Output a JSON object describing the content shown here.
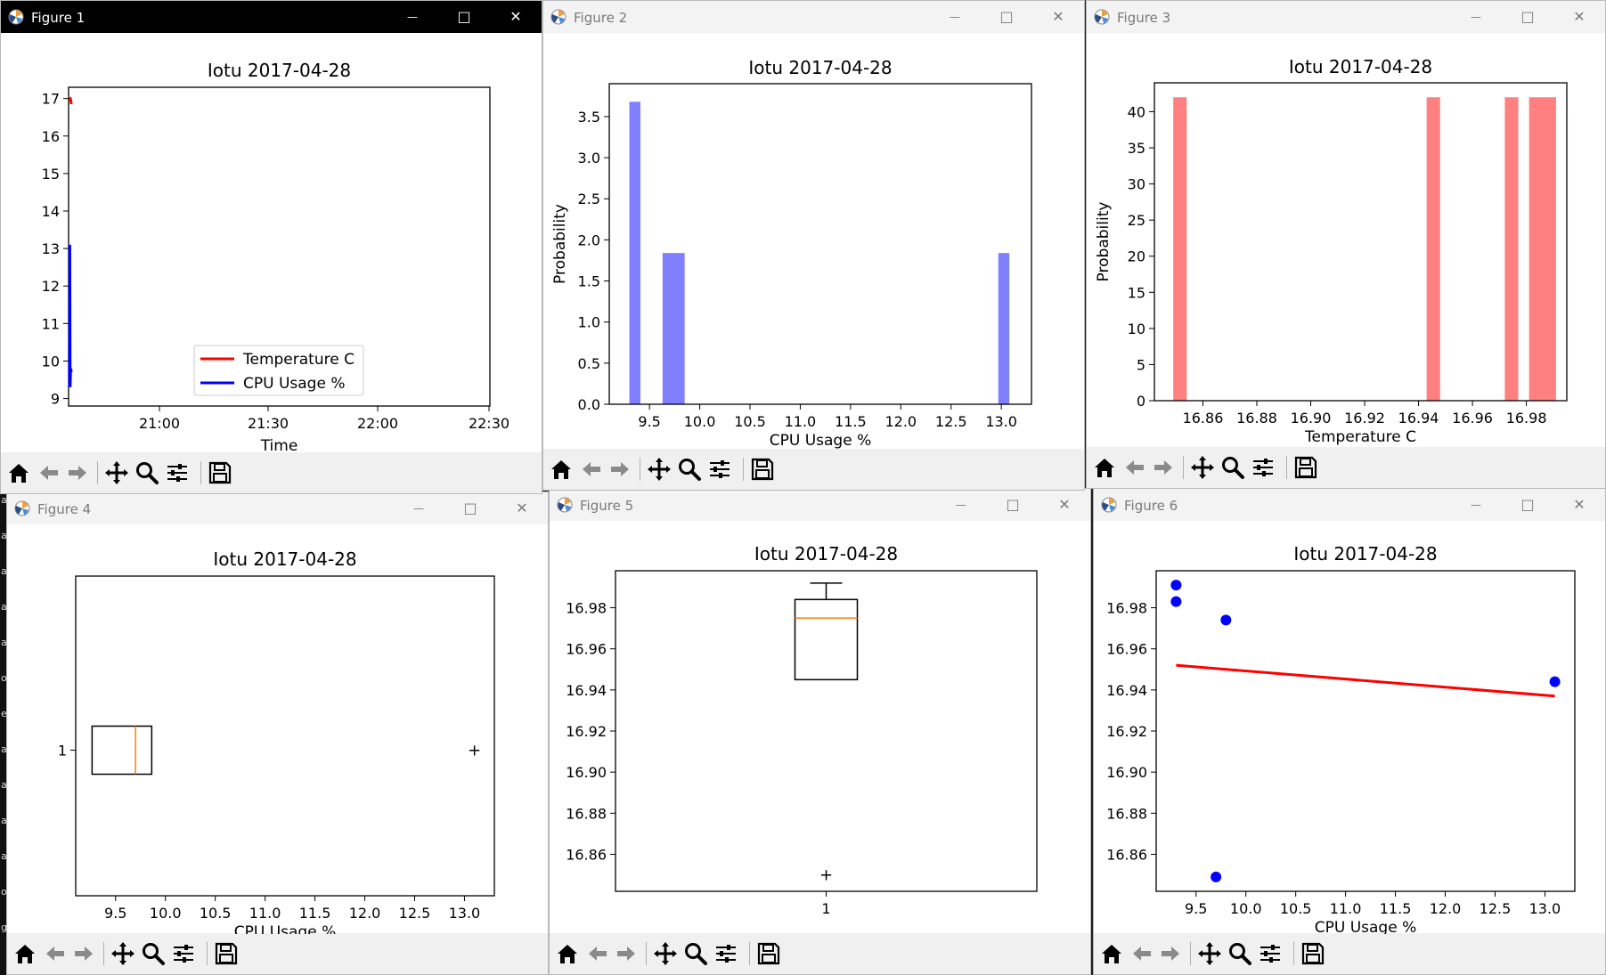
{
  "windows": [
    {
      "id": 1,
      "title": "Figure 1",
      "active": true
    },
    {
      "id": 2,
      "title": "Figure 2",
      "active": false
    },
    {
      "id": 3,
      "title": "Figure 3",
      "active": false
    },
    {
      "id": 4,
      "title": "Figure 4",
      "active": false
    },
    {
      "id": 5,
      "title": "Figure 5",
      "active": false
    },
    {
      "id": 6,
      "title": "Figure 6",
      "active": false
    }
  ],
  "toolbar_icons": [
    "home-icon",
    "back-arrow-icon",
    "forward-arrow-icon",
    "pan-icon",
    "zoom-icon",
    "configure-subplots-icon",
    "save-icon"
  ],
  "colors": {
    "blue": "#0000ff",
    "red": "#ff0000",
    "hist_blue": "#8080ff",
    "hist_red": "#ff8080",
    "median": "#ff7f0e"
  },
  "chart_data": [
    {
      "figure": 1,
      "type": "line",
      "title": "Iotu 2017-04-28",
      "xlabel": "Time",
      "ylabel": "",
      "xticks": [
        "21:00",
        "21:30",
        "22:00",
        "22:30"
      ],
      "yticks": [
        9,
        10,
        11,
        12,
        13,
        14,
        15,
        16,
        17
      ],
      "ylim": [
        8.8,
        17.3
      ],
      "legend": {
        "placement": "lower center",
        "entries": [
          "Temperature C",
          "CPU Usage %"
        ]
      },
      "series": [
        {
          "name": "Temperature C",
          "color": "#ff0000",
          "values": [
            16.98,
            16.99,
            16.97,
            16.98,
            16.94,
            16.85
          ]
        },
        {
          "name": "CPU Usage %",
          "color": "#0000ff",
          "values": [
            9.3,
            13.1,
            9.3,
            9.7,
            9.8,
            9.7
          ]
        }
      ]
    },
    {
      "figure": 2,
      "type": "bar",
      "title": "Iotu 2017-04-28",
      "xlabel": "CPU Usage %",
      "ylabel": "Probability",
      "xlim": [
        9.1,
        13.3
      ],
      "ylim": [
        0,
        3.9
      ],
      "xticks": [
        "9.5",
        "10.0",
        "10.5",
        "11.0",
        "11.5",
        "12.0",
        "12.5",
        "13.0"
      ],
      "yticks": [
        "0.0",
        "0.5",
        "1.0",
        "1.5",
        "2.0",
        "2.5",
        "3.0",
        "3.5"
      ],
      "bars": [
        {
          "x0": 9.3,
          "x1": 9.41,
          "value": 3.68
        },
        {
          "x0": 9.63,
          "x1": 9.85,
          "value": 1.84
        },
        {
          "x0": 12.97,
          "x1": 13.08,
          "value": 1.84
        }
      ]
    },
    {
      "figure": 3,
      "type": "bar",
      "title": "Iotu 2017-04-28",
      "xlabel": "Temperature C",
      "ylabel": "Probability",
      "xlim": [
        16.842,
        16.995
      ],
      "ylim": [
        0,
        44
      ],
      "xticks": [
        "16.86",
        "16.88",
        "16.90",
        "16.92",
        "16.94",
        "16.96",
        "16.98"
      ],
      "yticks": [
        "0",
        "5",
        "10",
        "15",
        "20",
        "25",
        "30",
        "35",
        "40"
      ],
      "bars": [
        {
          "x0": 16.849,
          "x1": 16.854,
          "value": 42
        },
        {
          "x0": 16.943,
          "x1": 16.948,
          "value": 42
        },
        {
          "x0": 16.972,
          "x1": 16.977,
          "value": 42
        },
        {
          "x0": 16.981,
          "x1": 16.991,
          "value": 42
        }
      ]
    },
    {
      "figure": 4,
      "type": "boxplot",
      "title": "Iotu 2017-04-28",
      "xlabel": "CPU Usage %",
      "ylabel": "",
      "orientation": "horizontal",
      "xlim": [
        9.1,
        13.3
      ],
      "xticks": [
        "9.5",
        "10.0",
        "10.5",
        "11.0",
        "11.5",
        "12.0",
        "12.5",
        "13.0"
      ],
      "yticks": [
        "1"
      ],
      "box": {
        "q1": 9.3,
        "median": 9.7,
        "q3": 9.8,
        "whisker_low": 9.3,
        "whisker_high": 9.8,
        "outliers": [
          13.1
        ]
      }
    },
    {
      "figure": 5,
      "type": "boxplot",
      "title": "Iotu 2017-04-28",
      "xlabel": "",
      "ylabel": "",
      "orientation": "vertical",
      "ylim": [
        16.842,
        16.998
      ],
      "xticks": [
        "1"
      ],
      "yticks": [
        "16.86",
        "16.88",
        "16.90",
        "16.92",
        "16.94",
        "16.96",
        "16.98"
      ],
      "box": {
        "q1": 16.945,
        "median": 16.975,
        "q3": 16.984,
        "whisker_low": 16.945,
        "whisker_high": 16.992,
        "outliers": [
          16.85
        ]
      }
    },
    {
      "figure": 6,
      "type": "scatter",
      "title": "Iotu 2017-04-28",
      "xlabel": "CPU Usage %",
      "ylabel": "",
      "xlim": [
        9.1,
        13.3
      ],
      "ylim": [
        16.842,
        16.998
      ],
      "xticks": [
        "9.5",
        "10.0",
        "10.5",
        "11.0",
        "11.5",
        "12.0",
        "12.5",
        "13.0"
      ],
      "yticks": [
        "16.86",
        "16.88",
        "16.90",
        "16.92",
        "16.94",
        "16.96",
        "16.98"
      ],
      "points": [
        {
          "x": 9.3,
          "y": 16.991
        },
        {
          "x": 9.3,
          "y": 16.983
        },
        {
          "x": 9.8,
          "y": 16.974
        },
        {
          "x": 9.7,
          "y": 16.849
        },
        {
          "x": 13.1,
          "y": 16.944
        }
      ],
      "fit_line": {
        "x": [
          9.3,
          13.1
        ],
        "y": [
          16.952,
          16.937
        ]
      }
    }
  ]
}
